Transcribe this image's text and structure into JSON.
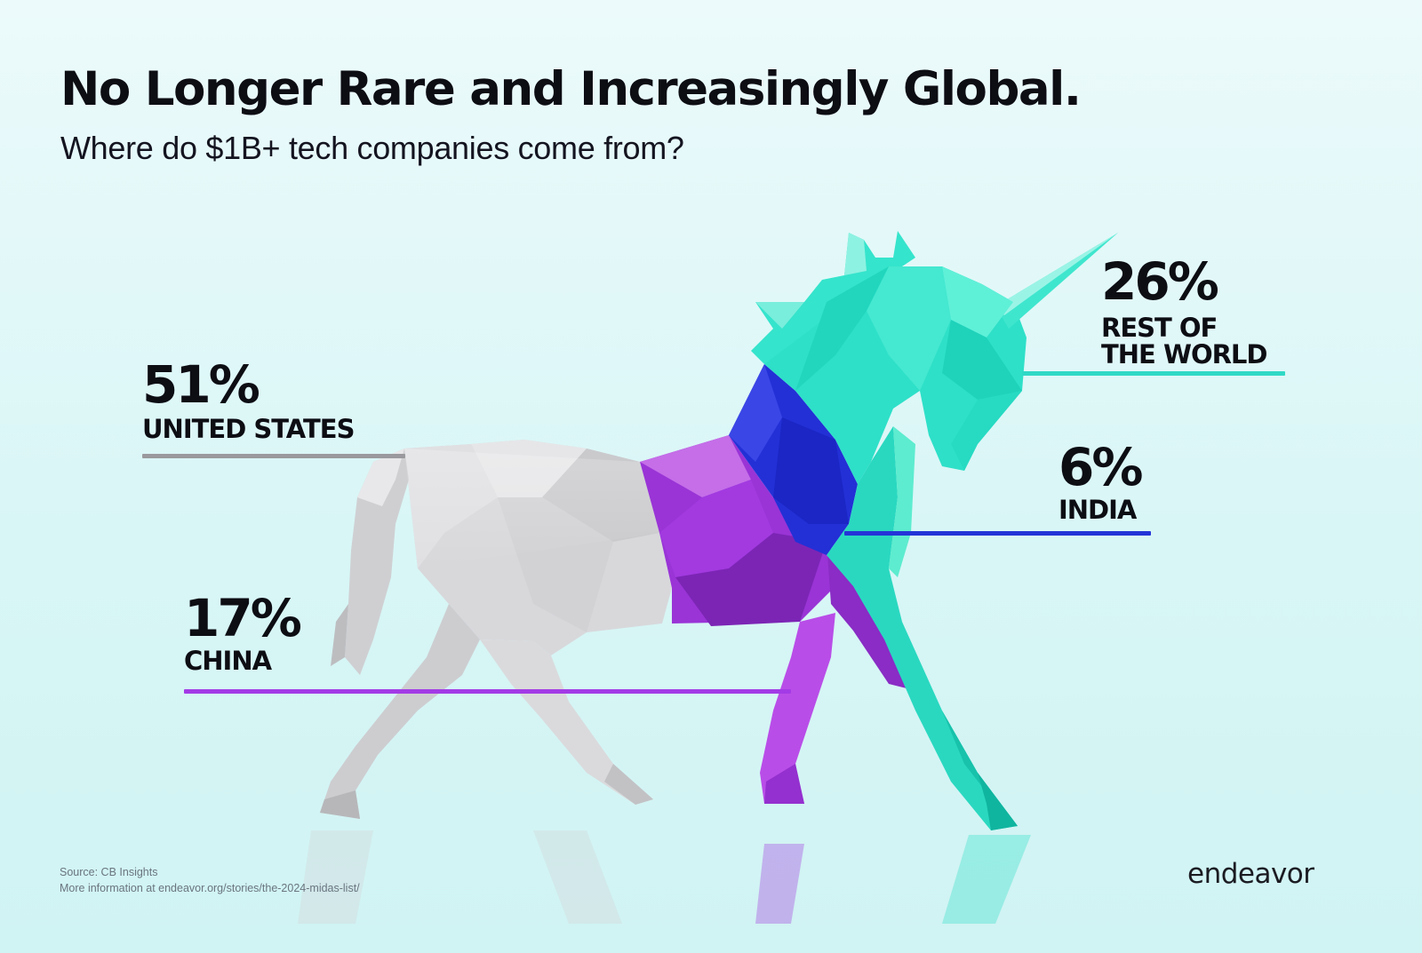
{
  "header": {
    "title": "No Longer Rare and Increasingly Global.",
    "subtitle": "Where do $1B+ tech companies come from?"
  },
  "chart_data": {
    "type": "pie",
    "title": "No Longer Rare and Increasingly Global.",
    "subtitle": "Where do $1B+ tech companies come from?",
    "categories": [
      "UNITED STATES",
      "REST OF THE WORLD",
      "CHINA",
      "INDIA"
    ],
    "values": [
      51,
      26,
      17,
      6
    ],
    "value_labels": [
      "51%",
      "26%",
      "17%",
      "6%"
    ],
    "colors": {
      "UNITED STATES": "#cfcfd2",
      "REST OF THE WORLD": "#2ee0c8",
      "CHINA": "#a23ae0",
      "INDIA": "#2330d6"
    },
    "leader_colors": {
      "UNITED STATES": "#9a9a9e",
      "REST OF THE WORLD": "#2fd9c6",
      "CHINA": "#a33be6",
      "INDIA": "#2434d8"
    },
    "grid": false,
    "legend": "none"
  },
  "stats": {
    "us": {
      "pct": "51%",
      "label": "UNITED STATES"
    },
    "row": {
      "pct": "26%",
      "label_line1": "REST OF",
      "label_line2": "THE WORLD"
    },
    "india": {
      "pct": "6%",
      "label": "INDIA"
    },
    "china": {
      "pct": "17%",
      "label": "CHINA"
    }
  },
  "footer": {
    "source": "Source: CB Insights",
    "more_info": "More information at endeavor.org/stories/the-2024-midas-list/",
    "logo": "endeavor"
  }
}
